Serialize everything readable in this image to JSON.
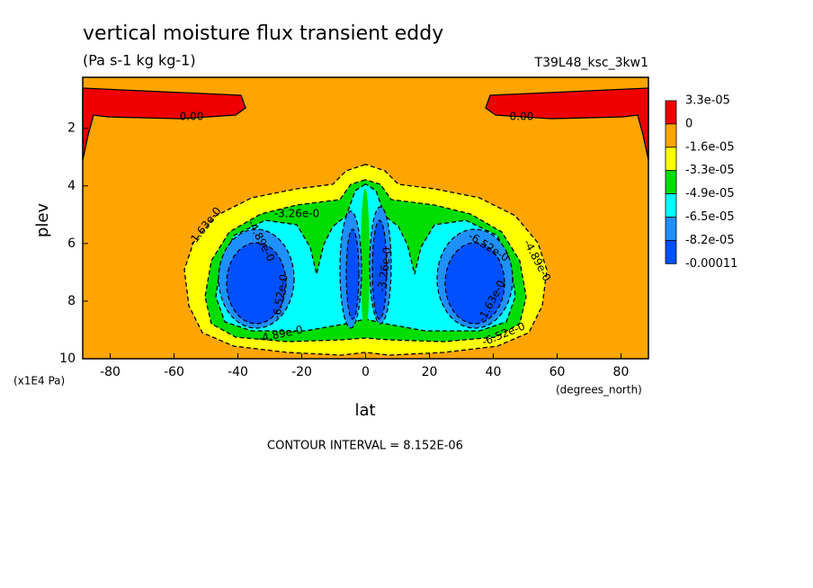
{
  "chart_data": {
    "type": "contour",
    "title": "vertical moisture flux transient eddy",
    "subtitle": "(Pa s-1 kg kg-1)",
    "dataset": "T39L48_ksc_3kw1",
    "x_label": "lat",
    "y_label": "plev",
    "x_units": "(degrees_north)",
    "y_units": "(x1E4 Pa)",
    "footer": "CONTOUR INTERVAL = 8.152E-06",
    "xlim": [
      -88.6,
      88.6
    ],
    "xticks": [
      -80,
      -60,
      -40,
      -20,
      0,
      20,
      40,
      60,
      80
    ],
    "ylim": [
      0.23,
      10
    ],
    "y_inverted": true,
    "yticks": [
      2,
      4,
      6,
      8,
      10
    ],
    "colorbar": {
      "levels": [
        {
          "value": 3.3e-05,
          "label": "3.3e-05"
        },
        0,
        {
          "value": -1.6e-05,
          "label": "-1.6e-05"
        },
        {
          "value": -3.3e-05,
          "label": "-3.3e-05"
        },
        {
          "value": -4.9e-05,
          "label": "-4.9e-05"
        },
        {
          "value": -6.5e-05,
          "label": "-6.5e-05"
        },
        {
          "value": -8.2e-05,
          "label": "-8.2e-05"
        },
        -0.00011
      ],
      "colors": [
        "#ee0000",
        "#ffa500",
        "#ffff00",
        "#00dd00",
        "#00ffff",
        "#1e90ff",
        "#0050ff"
      ]
    },
    "contour_labels": [
      {
        "value": 0,
        "label": "0.00"
      },
      {
        "value": 0,
        "label": "0.00"
      },
      {
        "value": -1.63e-05,
        "label": "-1.63e-0"
      },
      {
        "value": -3.26e-05,
        "label": "-3.26e-0"
      },
      {
        "value": -4.89e-05,
        "label": "-4.89e-0"
      },
      {
        "value": -6.52e-05,
        "label": "-6.52e-0"
      },
      {
        "value": -4.89e-05,
        "label": "-4.89e-0"
      },
      {
        "value": -6.52e-05,
        "label": "-6.52e-0"
      },
      {
        "value": -4.89e-05,
        "label": "-4.89e-0"
      },
      {
        "value": -1.63e-05,
        "label": "-1.63e-0"
      },
      {
        "value": -6.52e-05,
        "label": "-6.52e-0"
      },
      {
        "value": -3.26e-05,
        "label": "-3.26e-0"
      }
    ]
  }
}
